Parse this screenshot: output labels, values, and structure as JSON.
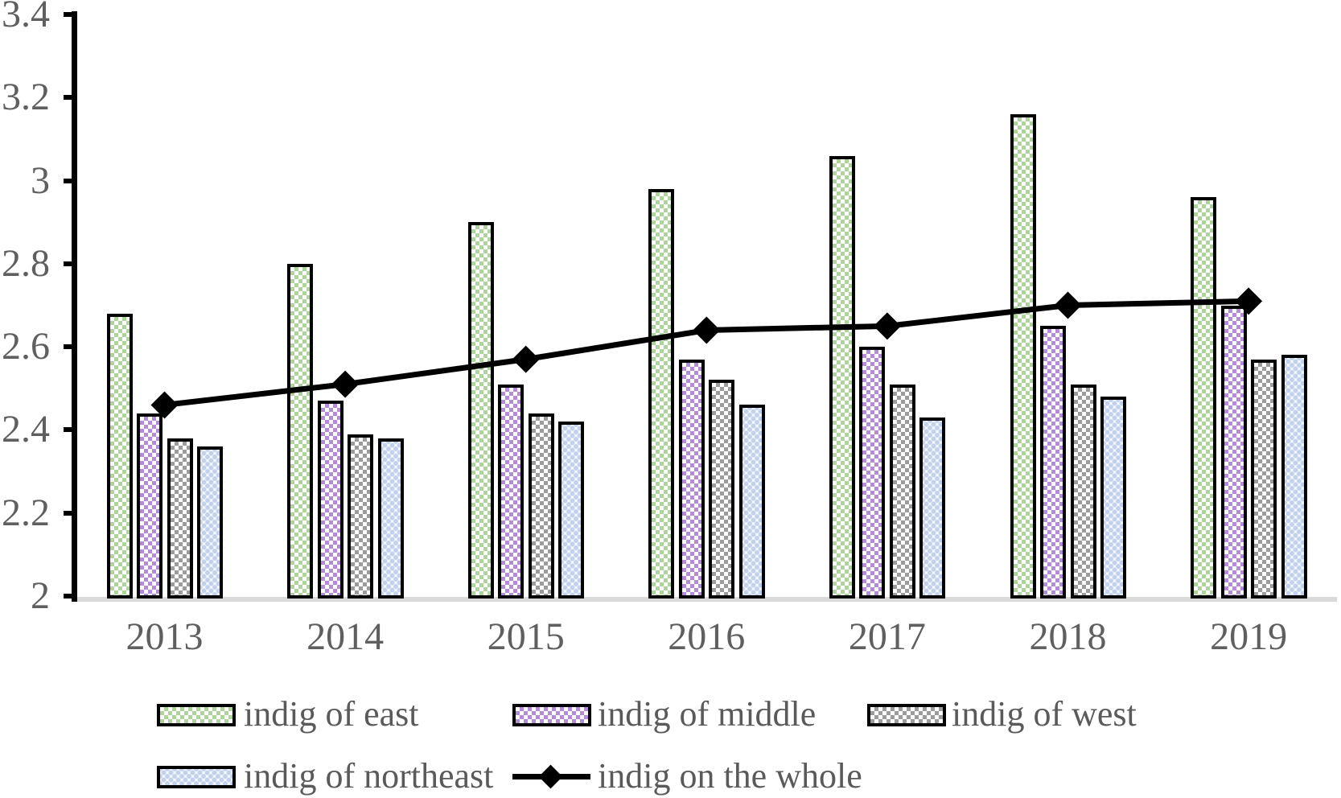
{
  "chart_data": {
    "type": "bar",
    "subtype": "grouped-bars-with-line-overlay",
    "title": "",
    "xlabel": "",
    "ylabel": "",
    "categories": [
      "2013",
      "2014",
      "2015",
      "2016",
      "2017",
      "2018",
      "2019"
    ],
    "series": [
      {
        "name": "indig of east",
        "type": "bar",
        "color": "#aed49c",
        "pattern": "diagonal-checker",
        "values": [
          2.68,
          2.8,
          2.9,
          2.98,
          3.06,
          3.16,
          2.96
        ]
      },
      {
        "name": "indig of middle",
        "type": "bar",
        "color": "#b48bd8",
        "pattern": "diagonal-checker",
        "values": [
          2.44,
          2.47,
          2.51,
          2.57,
          2.6,
          2.65,
          2.7
        ]
      },
      {
        "name": "indig of west",
        "type": "bar",
        "color": "#9c9c9c",
        "pattern": "diagonal-checker",
        "values": [
          2.38,
          2.39,
          2.44,
          2.52,
          2.51,
          2.51,
          2.57
        ]
      },
      {
        "name": "indig of northeast",
        "type": "bar",
        "color": "#c3d2ec",
        "pattern": "dotted",
        "values": [
          2.36,
          2.38,
          2.42,
          2.46,
          2.43,
          2.48,
          2.58
        ]
      },
      {
        "name": "indig on the whole",
        "type": "line",
        "color": "#000000",
        "marker": "diamond",
        "values": [
          2.46,
          2.51,
          2.57,
          2.64,
          2.65,
          2.7,
          2.71
        ]
      }
    ],
    "ylim": [
      2,
      3.4
    ],
    "yticks": [
      2,
      2.2,
      2.4,
      2.6,
      2.8,
      3,
      3.2,
      3.4
    ],
    "ytick_labels": [
      "2",
      "2.2",
      "2.4",
      "2.6",
      "2.8",
      "3",
      "3.2",
      "3.4"
    ],
    "grid": false,
    "legend_position": "bottom",
    "axis_text_color": "#5f5f5f",
    "bar_border_color": "#000000",
    "baseline_color": "#d9d9d9"
  }
}
